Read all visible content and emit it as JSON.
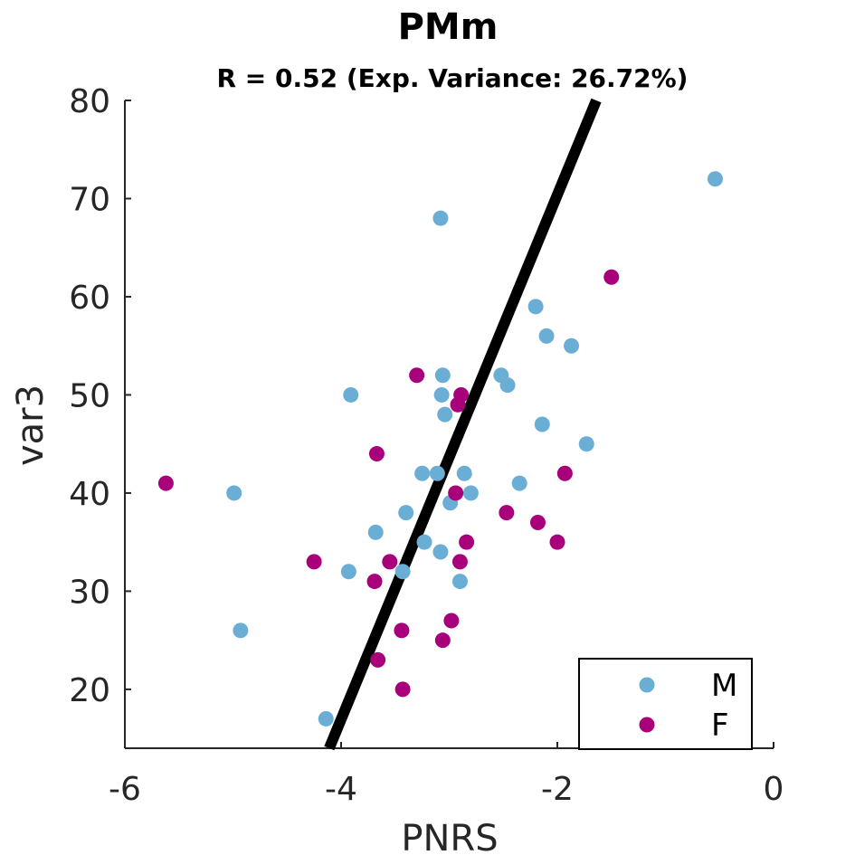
{
  "chart_data": {
    "type": "scatter",
    "title": "PMm",
    "subtitle": "R = 0.52 (Exp. Variance: 26.72%)",
    "xlabel": "PNRS",
    "ylabel": "var3",
    "xlim": [
      -6,
      0
    ],
    "ylim": [
      14,
      80
    ],
    "xticks": [
      -6,
      -4,
      -2,
      0
    ],
    "yticks": [
      20,
      30,
      40,
      50,
      60,
      70,
      80
    ],
    "x_tick_labels": [
      "-6",
      "-4",
      "-2",
      "0"
    ],
    "y_tick_labels": [
      "20",
      "30",
      "40",
      "50",
      "60",
      "70",
      "80"
    ],
    "grid": false,
    "legend_position": "bottom-right",
    "fit_line": {
      "x": [
        -4.11,
        -1.64
      ],
      "y": [
        14,
        80
      ],
      "color": "#000000"
    },
    "series": [
      {
        "name": "M",
        "color": "#6aaed6",
        "points": [
          [
            -0.54,
            72
          ],
          [
            -3.08,
            68
          ],
          [
            -2.2,
            59
          ],
          [
            -2.1,
            56
          ],
          [
            -1.87,
            55
          ],
          [
            -2.52,
            52
          ],
          [
            -3.06,
            52
          ],
          [
            -2.46,
            51
          ],
          [
            -3.07,
            50
          ],
          [
            -3.91,
            50
          ],
          [
            -3.04,
            48
          ],
          [
            -2.14,
            47
          ],
          [
            -1.73,
            45
          ],
          [
            -3.25,
            42
          ],
          [
            -3.11,
            42
          ],
          [
            -2.86,
            42
          ],
          [
            -2.35,
            41
          ],
          [
            -4.99,
            40
          ],
          [
            -2.8,
            40
          ],
          [
            -2.99,
            39
          ],
          [
            -3.4,
            38
          ],
          [
            -3.68,
            36
          ],
          [
            -3.23,
            35
          ],
          [
            -3.08,
            34
          ],
          [
            -3.93,
            32
          ],
          [
            -3.43,
            32
          ],
          [
            -2.9,
            31
          ],
          [
            -4.93,
            26
          ],
          [
            -4.14,
            17
          ]
        ]
      },
      {
        "name": "F",
        "color": "#a8007a",
        "points": [
          [
            -1.5,
            62
          ],
          [
            -3.3,
            52
          ],
          [
            -2.89,
            50
          ],
          [
            -2.92,
            49
          ],
          [
            -3.67,
            44
          ],
          [
            -1.93,
            42
          ],
          [
            -5.62,
            41
          ],
          [
            -2.94,
            40
          ],
          [
            -2.47,
            38
          ],
          [
            -2.18,
            37
          ],
          [
            -2.84,
            35
          ],
          [
            -2.0,
            35
          ],
          [
            -4.25,
            33
          ],
          [
            -3.55,
            33
          ],
          [
            -2.9,
            33
          ],
          [
            -3.69,
            31
          ],
          [
            -3.44,
            26
          ],
          [
            -2.98,
            27
          ],
          [
            -3.06,
            25
          ],
          [
            -3.66,
            23
          ],
          [
            -3.43,
            20
          ]
        ]
      }
    ]
  }
}
